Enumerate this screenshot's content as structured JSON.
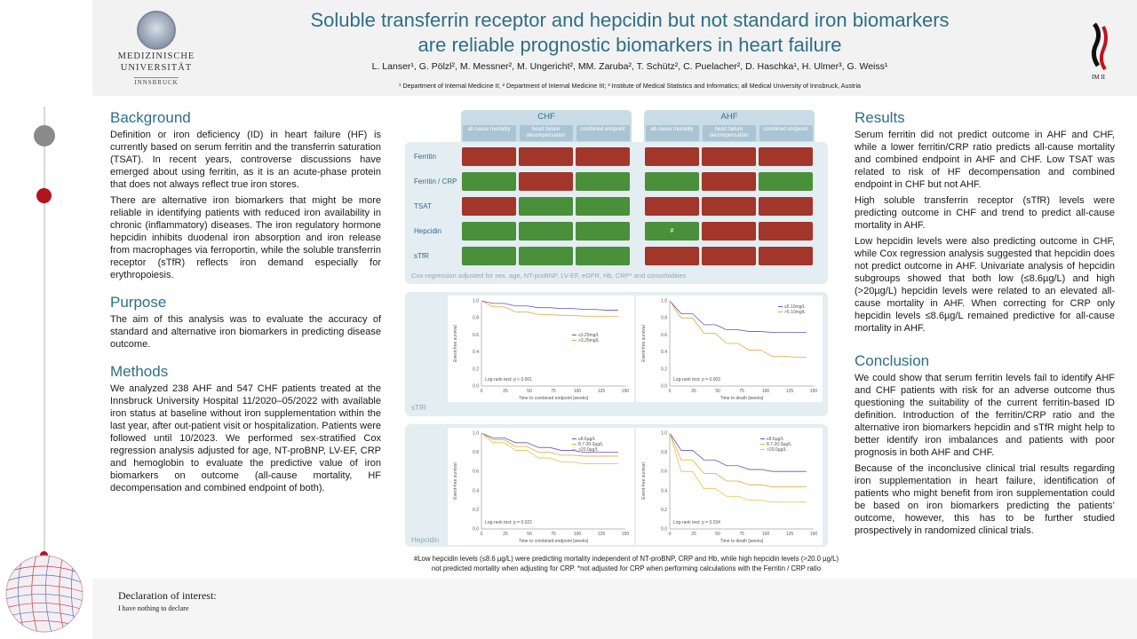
{
  "header": {
    "title_line1": "Soluble transferrin receptor and hepcidin but not standard iron biomarkers",
    "title_line2": "are reliable prognostic biomarkers in heart failure",
    "authors": "L. Lanser¹, G. Pölzl², M. Messner², M. Ungericht², MM. Zaruba², T. Schütz², C. Puelacher², D. Haschka¹, H. Ulmer³, G. Weiss¹",
    "affiliations": "¹ Department of Internal Medicine II; ² Department of Internal Medicine III; ³ Institute of Medical Statistics and Informatics; all Medical University of Innsbruck, Austria",
    "logo_left_line1": "MEDIZINISCHE",
    "logo_left_line2": "UNIVERSITÄT",
    "logo_left_city": "INNSBRUCK",
    "logo_right_text": "IM II"
  },
  "background": {
    "heading": "Background",
    "p1": "Definition or iron deficiency (ID) in heart failure (HF) is currently based on serum ferritin and the transferrin saturation (TSAT). In recent years, controverse discussions have emerged about using ferritin, as it is an acute-phase protein that does not always reflect true iron stores.",
    "p2": "There are alternative iron biomarkers that might be more reliable in identifying patients with reduced iron availability in chronic (inflammatory) diseases. The iron regulatory hormone hepcidin inhibits duodenal iron absorption and iron release from macrophages via ferroportin, while the soluble transferrin receptor (sTfR) reflects iron demand especially for erythropoiesis."
  },
  "purpose": {
    "heading": "Purpose",
    "p1": "The aim of this analysis was to evaluate the accuracy of standard and alternative iron biomarkers in predicting disease outcome."
  },
  "methods": {
    "heading": "Methods",
    "p1": "We analyzed 238 AHF and 547 CHF patients treated at the Innsbruck University Hospital 11/2020–05/2022 with available iron status at baseline without iron supplementation within the last year, after out-patient visit or hospitalization. Patients were followed until 10/2023. We performed sex-stratified Cox regression analysis adjusted for age, NT-proBNP, LV-EF, CRP and hemoglobin to evaluate the predictive value of iron biomarkers on outcome (all-cause mortality, HF decompensation and combined endpoint of both)."
  },
  "results": {
    "heading": "Results",
    "p1": "Serum ferritin did not predict outcome in AHF and CHF, while a lower ferritin/CRP ratio predicts all-cause mortality and combined endpoint in AHF and CHF. Low TSAT was related to risk of HF decompensation and combined endpoint in CHF but not AHF.",
    "p2": "High soluble transferrin receptor (sTfR) levels were predicting outcome in CHF and trend to predict all-cause mortality in AHF.",
    "p3": "Low hepcidin levels were also predicting outcome in CHF, while Cox regression analysis suggested that hepcidin does not predict outcome in AHF. Univariate analysis of hepcidin subgroups showed that both low (≤8.6µg/L) and high (>20µg/L) hepcidin levels were related to an elevated all-cause mortality in AHF. When correcting for CRP only hepcidin levels ≤8.6µg/L remained predictive for all-cause mortality in AHF."
  },
  "conclusion": {
    "heading": "Conclusion",
    "p1": "We could show that serum ferritin levels fail to identify AHF and CHF patients with risk for an adverse outcome thus questioning the suitability of the current ferritin-based ID definition. Introduction of the ferritin/CRP ratio and the alternative iron biomarkers hepcidin and sTfR might help to better identify iron imbalances and patients with poor prognosis in both AHF and CHF.",
    "p2": "Because of the inconclusive clinical trial results regarding iron supplementation in heart failure, identification of patients who might benefit from iron supplementation could be based on iron biomarkers predicting the patients’ outcome, however, this has to be further studied prospectively in randomized clinical trials."
  },
  "table": {
    "group_chf": "CHF",
    "group_ahf": "AHF",
    "col_labels": [
      "all-cause mortality",
      "heart failure decompensation",
      "combined endpoint",
      "all-cause mortality",
      "heart failure decompensation",
      "combined endpoint"
    ],
    "rows": [
      {
        "label": "Ferritin",
        "cells": [
          "red",
          "red",
          "red",
          "red",
          "red",
          "red"
        ],
        "marks": [
          "",
          "",
          "",
          "",
          "",
          ""
        ]
      },
      {
        "label": "Ferritin / CRP",
        "cells": [
          "green",
          "red",
          "green",
          "green",
          "red",
          "green"
        ],
        "marks": [
          "",
          "",
          "",
          "",
          "",
          ""
        ]
      },
      {
        "label": "TSAT",
        "cells": [
          "red",
          "green",
          "green",
          "red",
          "red",
          "red"
        ],
        "marks": [
          "",
          "",
          "",
          "",
          "",
          ""
        ]
      },
      {
        "label": "Hepcidin",
        "cells": [
          "green",
          "green",
          "green",
          "green",
          "red",
          "red"
        ],
        "marks": [
          "",
          "",
          "",
          "#",
          "",
          ""
        ]
      },
      {
        "label": "sTfR",
        "cells": [
          "green",
          "green",
          "green",
          "red",
          "red",
          "red"
        ],
        "marks": [
          "",
          "",
          "",
          "",
          "",
          ""
        ]
      }
    ],
    "footnote": "Cox-regression adjusted for sex, age, NT-proBNP, LV-EF, eGFR, Hb, CRP* and comorbidities"
  },
  "km": {
    "panel_stfr_label": "sTfR",
    "panel_hepcidin_label": "Hepcidin",
    "plots": [
      {
        "ylabel": "Event-free survival",
        "xlabel": "Time to combined endpoint [weeks]",
        "pval": "Log-rank test: p < 0.001",
        "legend": [
          "≤3.25mg/L",
          ">3.25mg/L"
        ],
        "yticks": [
          "1.0",
          "0.8",
          "0.6",
          "0.4",
          "0.2",
          "0.0"
        ],
        "xticks": [
          "0",
          "25",
          "50",
          "75",
          "100",
          "125",
          "150"
        ]
      },
      {
        "ylabel": "Event-free survival",
        "xlabel": "Time to death [weeks]",
        "pval": "Log-rank test: p = 0.003",
        "legend": [
          "≤5.10mg/L",
          ">5.10mg/L"
        ],
        "yticks": [
          "1.0",
          "0.8",
          "0.6",
          "0.4",
          "0.2",
          "0.0"
        ],
        "xticks": [
          "0",
          "25",
          "50",
          "75",
          "100",
          "125",
          "150"
        ]
      },
      {
        "ylabel": "Event-free survival",
        "xlabel": "Time to combined endpoint [weeks]",
        "pval": "Log-rank test: p = 0.022",
        "legend": [
          "≤8.6µg/L",
          "8.7-20.0µg/L",
          ">20.0µg/L"
        ],
        "yticks": [
          "1.0",
          "0.8",
          "0.6",
          "0.4",
          "0.2",
          "0.0"
        ],
        "xticks": [
          "0",
          "25",
          "50",
          "75",
          "100",
          "125",
          "150"
        ]
      },
      {
        "ylabel": "Event-free survival",
        "xlabel": "Time to death [weeks]",
        "pval": "Log-rank test: p = 0.034",
        "legend": [
          "≤8.6µg/L",
          "8.7-20.0µg/L",
          ">20.0µg/L"
        ],
        "yticks": [
          "1.0",
          "0.8",
          "0.6",
          "0.4",
          "0.2",
          "0.0"
        ],
        "xticks": [
          "0",
          "25",
          "50",
          "75",
          "100",
          "125",
          "150"
        ]
      }
    ]
  },
  "notes": {
    "line1": "#Low hepcidin levels (≤8.6 µg/L) were predicting mortality independent of NT-proBNP, CRP and Hb, while high hepcidin levels (>20.0 µg/L)",
    "line2": "not predicted mortality when adjusting for CRP. *not adjusted for CRP when performing calculations with the Ferritin / CRP ratio"
  },
  "declaration": {
    "title": "Declaration of interest:",
    "text": "I have nothing to declare"
  },
  "colors": {
    "accent": "#2e6e87",
    "red": "#a2362a",
    "green": "#4a8f3a",
    "panel": "#e4edf2"
  }
}
